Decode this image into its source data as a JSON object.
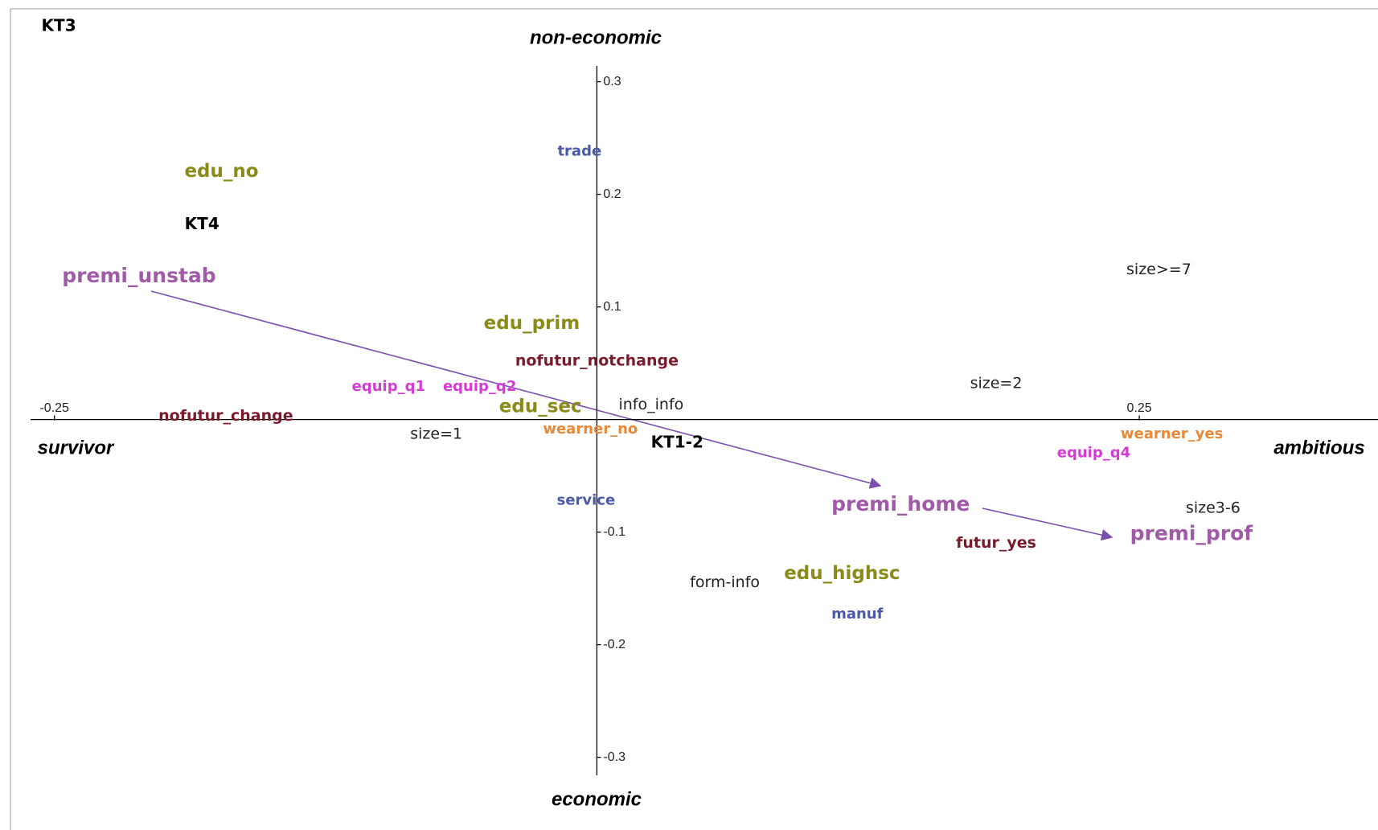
{
  "chart_data": {
    "type": "scatter",
    "x_left_label": "survivor",
    "x_right_label": "ambitious",
    "y_top_label": "non-economic",
    "y_bottom_label": "economic",
    "xlim": [
      -0.261,
      0.36
    ],
    "ylim": [
      -0.316,
      0.314
    ],
    "xticks": [
      -0.25,
      0.25
    ],
    "yticks": [
      0.3,
      0.2,
      0.1,
      -0.1,
      -0.2,
      -0.3
    ],
    "points": [
      {
        "label": "KT3",
        "x": -0.248,
        "y": 0.349,
        "color": "#000000"
      },
      {
        "label": "trade",
        "x": -0.008,
        "y": 0.238,
        "color": "#4a5aa8"
      },
      {
        "label": "edu_no",
        "x": -0.173,
        "y": 0.22,
        "color": "#8b8b1a"
      },
      {
        "label": "KT4",
        "x": -0.182,
        "y": 0.173,
        "color": "#000000"
      },
      {
        "label": "premi_unstab",
        "x": -0.211,
        "y": 0.127,
        "color": "#a05aa8"
      },
      {
        "label": "edu_prim",
        "x": -0.03,
        "y": 0.085,
        "color": "#8b8b1a"
      },
      {
        "label": "nofutur_notchange",
        "x": 0.0,
        "y": 0.052,
        "color": "#7a1a2a"
      },
      {
        "label": "equip_q1",
        "x": -0.096,
        "y": 0.029,
        "color": "#d63ad6"
      },
      {
        "label": "equip_q2",
        "x": -0.054,
        "y": 0.029,
        "color": "#d63ad6"
      },
      {
        "label": "edu_sec",
        "x": -0.026,
        "y": 0.011,
        "color": "#8b8b1a"
      },
      {
        "label": "info_info",
        "x": 0.025,
        "y": 0.013,
        "color": "#222222"
      },
      {
        "label": "nofutur_change",
        "x": -0.171,
        "y": 0.003,
        "color": "#7a1a2a"
      },
      {
        "label": "size=1",
        "x": -0.074,
        "y": -0.013,
        "color": "#222222"
      },
      {
        "label": "wearner_no",
        "x": -0.003,
        "y": -0.009,
        "color": "#e8893a"
      },
      {
        "label": "KT1-2",
        "x": 0.037,
        "y": -0.021,
        "color": "#000000"
      },
      {
        "label": "size=2",
        "x": 0.184,
        "y": 0.032,
        "color": "#222222"
      },
      {
        "label": "size>=7",
        "x": 0.259,
        "y": 0.133,
        "color": "#222222"
      },
      {
        "label": "wearner_yes",
        "x": 0.265,
        "y": -0.013,
        "color": "#e8893a"
      },
      {
        "label": "equip_q4",
        "x": 0.229,
        "y": -0.03,
        "color": "#d63ad6"
      },
      {
        "label": "service",
        "x": -0.005,
        "y": -0.072,
        "color": "#4a5aa8"
      },
      {
        "label": "premi_home",
        "x": 0.14,
        "y": -0.076,
        "color": "#a05aa8"
      },
      {
        "label": "size3-6",
        "x": 0.284,
        "y": -0.079,
        "color": "#222222"
      },
      {
        "label": "premi_prof",
        "x": 0.274,
        "y": -0.102,
        "color": "#a05aa8"
      },
      {
        "label": "futur_yes",
        "x": 0.184,
        "y": -0.11,
        "color": "#7a1a2a"
      },
      {
        "label": "form-info",
        "x": 0.059,
        "y": -0.145,
        "color": "#222222"
      },
      {
        "label": "edu_highsc",
        "x": 0.113,
        "y": -0.137,
        "color": "#8b8b1a"
      },
      {
        "label": "manuf",
        "x": 0.12,
        "y": -0.173,
        "color": "#4a5aa8"
      }
    ]
  }
}
